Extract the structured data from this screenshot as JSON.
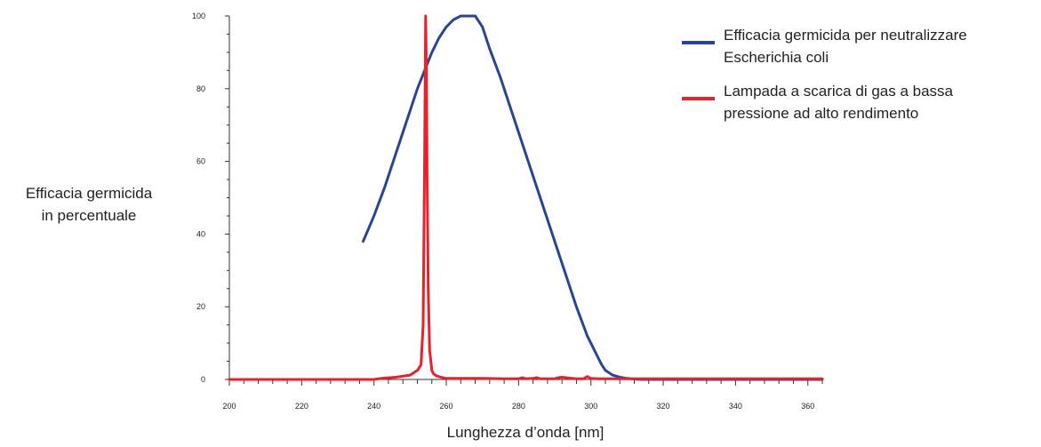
{
  "chart_data": {
    "type": "line",
    "xlabel": "Lunghezza d’onda [nm]",
    "ylabel_lines": [
      "Efficacia germicida",
      "in percentuale"
    ],
    "xlim": [
      200,
      364
    ],
    "ylim": [
      0,
      100
    ],
    "x_ticks": [
      200,
      220,
      240,
      260,
      280,
      300,
      320,
      340,
      360
    ],
    "y_ticks": [
      0,
      20,
      40,
      60,
      80,
      100
    ],
    "grid": false,
    "legend_position": "top-right",
    "series": [
      {
        "name_lines": [
          "Efficacia germicida per neutralizzare",
          "Escherichia coli"
        ],
        "color": "#2a4596",
        "x": [
          237,
          240,
          243,
          246,
          249,
          252,
          254,
          256,
          258,
          260,
          262,
          264,
          266,
          268,
          270,
          272,
          275,
          278,
          281,
          284,
          287,
          290,
          293,
          296,
          299,
          302,
          303,
          304,
          306,
          308,
          310,
          312,
          314,
          316,
          320,
          330,
          340,
          350,
          360,
          364
        ],
        "y": [
          38,
          45,
          53,
          62,
          71,
          80,
          85,
          90,
          94,
          97,
          99,
          100,
          100,
          100,
          97,
          91,
          83,
          74,
          65,
          56,
          47,
          38,
          29,
          20,
          12,
          6,
          4,
          2.5,
          1.2,
          0.6,
          0.3,
          0.1,
          0,
          0,
          0,
          0,
          0,
          0,
          0,
          0
        ]
      },
      {
        "name_lines": [
          "Lampada a scarica di gas a bassa",
          "pressione ad alto rendimento"
        ],
        "color": "#e8212b",
        "x": [
          200,
          240,
          242,
          246,
          250,
          252,
          253,
          253.6,
          254.0,
          254.3,
          254.5,
          254.7,
          255.0,
          255.4,
          256,
          256.5,
          257.3,
          258.5,
          260,
          262,
          270,
          276,
          280,
          281,
          282,
          284,
          285,
          286,
          290,
          291,
          292,
          294,
          296,
          298,
          299,
          300,
          302,
          310,
          320,
          330,
          340,
          350,
          360,
          364
        ],
        "y": [
          0,
          0,
          0.3,
          0.6,
          1.2,
          2.5,
          4,
          15,
          60,
          100,
          85,
          55,
          25,
          8,
          2.5,
          1.5,
          1,
          0.6,
          0.3,
          0.3,
          0.3,
          0.2,
          0.2,
          0.5,
          0.2,
          0.3,
          0.5,
          0.2,
          0.2,
          0.5,
          0.6,
          0.4,
          0.2,
          0.2,
          0.8,
          0.3,
          0.2,
          0.2,
          0.2,
          0.2,
          0.2,
          0.2,
          0.2,
          0.2
        ]
      }
    ]
  }
}
